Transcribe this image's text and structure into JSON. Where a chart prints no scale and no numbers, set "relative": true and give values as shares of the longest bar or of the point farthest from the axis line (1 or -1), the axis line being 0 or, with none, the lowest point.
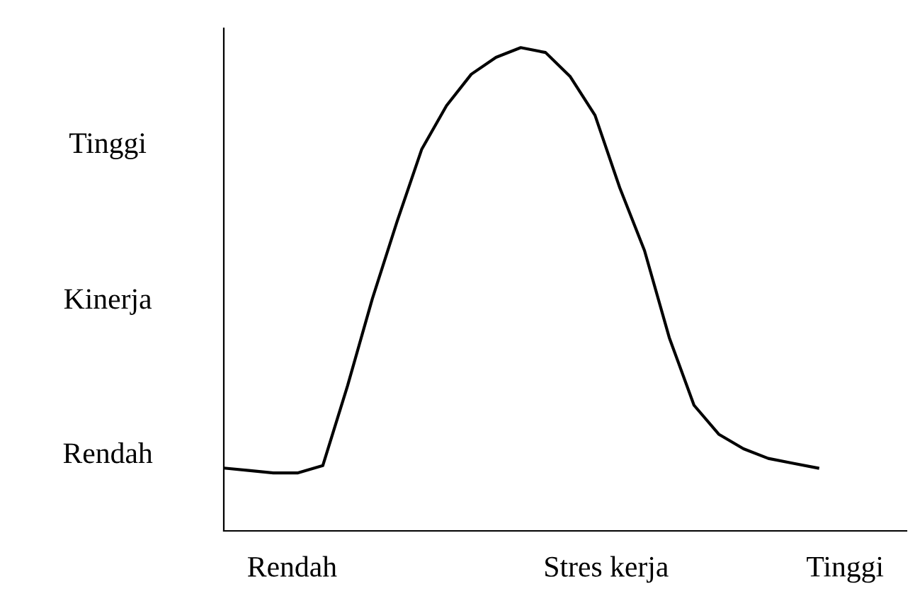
{
  "chart_data": {
    "type": "line",
    "relative": true,
    "xlabel": "Stres kerja",
    "ylabel": "Kinerja",
    "annotations": [
      "Tinggi",
      "Rendah",
      "Rendah",
      "Tinggi"
    ],
    "categories": [
      null,
      null,
      null,
      null,
      null,
      null,
      null,
      null,
      null,
      null,
      null,
      null,
      null,
      null,
      null,
      null,
      null,
      null,
      null,
      null,
      null,
      null,
      null,
      null,
      null
    ],
    "series": [
      {
        "color": "#000000",
        "values": [
          0.13,
          0.125,
          0.12,
          0.12,
          0.135,
          0.3,
          0.48,
          0.64,
          0.79,
          0.88,
          0.945,
          0.98,
          1.0,
          0.99,
          0.94,
          0.86,
          0.71,
          0.58,
          0.4,
          0.26,
          0.2,
          0.17,
          0.15,
          0.14,
          0.13
        ]
      }
    ],
    "marker": "none",
    "line_style": "solid"
  }
}
